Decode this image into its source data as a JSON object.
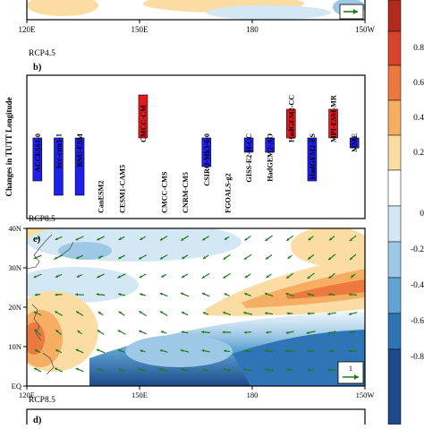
{
  "top_panel": {
    "x_ticks": [
      "120E",
      "150E",
      "180",
      "150W"
    ]
  },
  "panel_b": {
    "scenario_label": "RCP4.5",
    "panel_label": "b)",
    "ylabel": "Changes in TUTT Longitude"
  },
  "panel_c": {
    "scenario_label": "RCP8.5",
    "panel_label": "c)",
    "y_ticks": [
      "40N",
      "30N",
      "20N",
      "10N",
      "EQ"
    ],
    "x_ticks": [
      "120E",
      "150E",
      "180",
      "150W"
    ],
    "reference_vector_label": "1"
  },
  "panel_d": {
    "scenario_label": "RCP8.5",
    "panel_label": "d)"
  },
  "colorbar": {
    "labels": [
      "0.8",
      "0.6",
      "0.4",
      "0.2",
      "0",
      "-0.2",
      "-0.4",
      "-0.6",
      "-0.8"
    ],
    "colors": [
      "#b22a1c",
      "#d6452b",
      "#ec7a3e",
      "#f6ae62",
      "#fbdca3",
      "#ffffff",
      "#d4e7f4",
      "#9ec9e6",
      "#5fa4d2",
      "#2f74b4",
      "#1c4a8a"
    ]
  },
  "chart_data": {
    "type": "bar",
    "title": "",
    "ylabel": "Changes in TUTT Longitude",
    "ylim": [
      -4,
      3
    ],
    "categories": [
      "ACCESS1-0",
      "bcc-csm1-1",
      "BNU-ESM",
      "CanESM2",
      "CESM1-CAM5",
      "CMCC-CM",
      "CMCC-CMS",
      "CNRM-CM5",
      "CSIRO-Mk3-6-0",
      "FGOALS-g2",
      "GISS-E2-H-CC",
      "HadGEM2-AO",
      "HadGEM2-CC",
      "HadGEM2-ES",
      "MPI-ESM-MR",
      "MME"
    ],
    "values": [
      -3,
      -4,
      -4,
      0,
      0,
      3,
      0,
      0,
      -2,
      0,
      -1,
      -1,
      2,
      -3,
      2,
      -0.7
    ],
    "positive_color": "#e8191d",
    "negative_color": "#1f1ff0"
  }
}
